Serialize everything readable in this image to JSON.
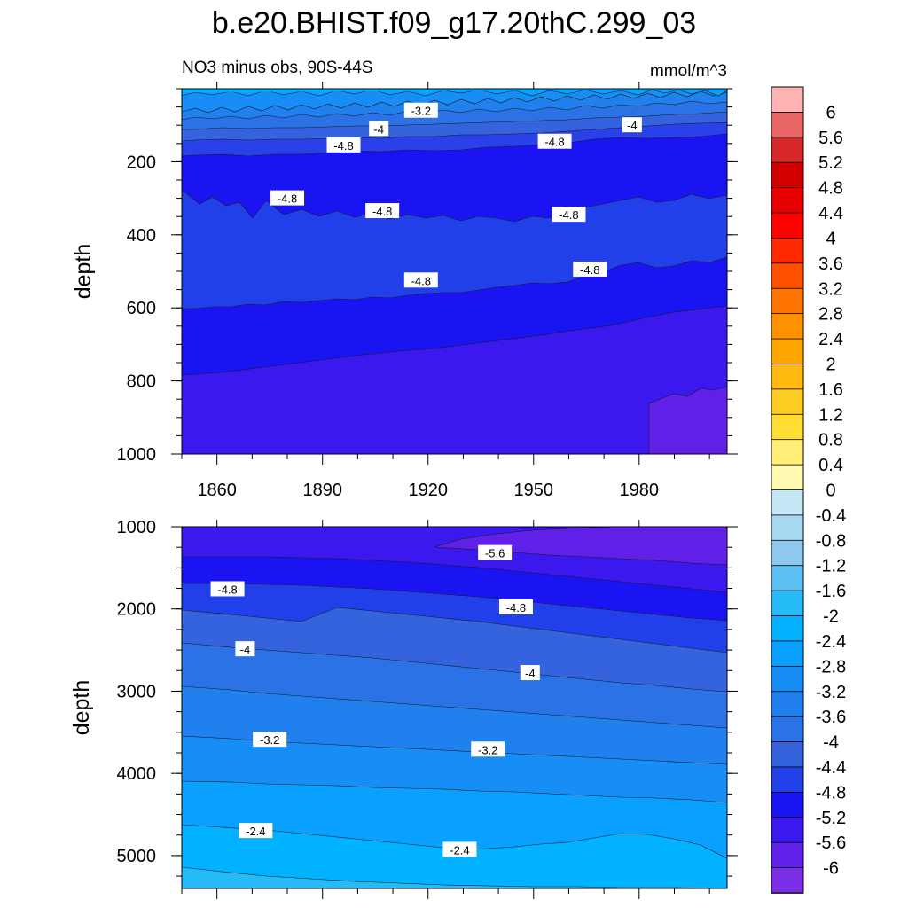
{
  "chart_data": [
    {
      "type": "heatmap",
      "title": "b.e20.BHIST.f09_g17.20thC.299_03",
      "left_subtitle": "NO3 minus obs, 90S-44S",
      "right_subtitle": "mmol/m^3",
      "ylabel": "depth",
      "xlim": [
        1850,
        2005
      ],
      "ylim": [
        0,
        1000
      ],
      "x_ticks": [
        "1860",
        "1890",
        "1920",
        "1950",
        "1980"
      ],
      "y_ticks": [
        "200",
        "400",
        "600",
        "800",
        "1000"
      ],
      "contour_labels": [
        {
          "text": "-3.2",
          "x": 1918,
          "y": 60
        },
        {
          "text": "-4",
          "x": 1906,
          "y": 110
        },
        {
          "text": "-4",
          "x": 1978,
          "y": 100
        },
        {
          "text": "-4.8",
          "x": 1896,
          "y": 155
        },
        {
          "text": "-4.8",
          "x": 1956,
          "y": 145
        },
        {
          "text": "-4.8",
          "x": 1880,
          "y": 300
        },
        {
          "text": "-4.8",
          "x": 1907,
          "y": 335
        },
        {
          "text": "-4.8",
          "x": 1960,
          "y": 345
        },
        {
          "text": "-4.8",
          "x": 1918,
          "y": 525
        },
        {
          "text": "-4.8",
          "x": 1966,
          "y": 495
        }
      ]
    },
    {
      "type": "heatmap",
      "ylabel": "depth",
      "xlim": [
        1850,
        2005
      ],
      "ylim": [
        1000,
        5400
      ],
      "y_ticks": [
        "1000",
        "2000",
        "3000",
        "4000",
        "5000"
      ],
      "contour_labels": [
        {
          "text": "-5.6",
          "x": 1939,
          "y": 1320
        },
        {
          "text": "-4.8",
          "x": 1863,
          "y": 1760
        },
        {
          "text": "-4.8",
          "x": 1945,
          "y": 1980
        },
        {
          "text": "-4",
          "x": 1868,
          "y": 2490
        },
        {
          "text": "-4",
          "x": 1949,
          "y": 2780
        },
        {
          "text": "-3.2",
          "x": 1875,
          "y": 3590
        },
        {
          "text": "-3.2",
          "x": 1937,
          "y": 3710
        },
        {
          "text": "-2.4",
          "x": 1871,
          "y": 4700
        },
        {
          "text": "-2.4",
          "x": 1929,
          "y": 4930
        }
      ]
    }
  ],
  "colorbar": {
    "labels": [
      "6",
      "5.6",
      "5.2",
      "4.8",
      "4.4",
      "4",
      "3.6",
      "3.2",
      "2.8",
      "2.4",
      "2",
      "1.6",
      "1.2",
      "0.8",
      "0.4",
      "0",
      "-0.4",
      "-0.8",
      "-1.2",
      "-1.6",
      "-2",
      "-2.4",
      "-2.8",
      "-3.2",
      "-3.6",
      "-4",
      "-4.4",
      "-4.8",
      "-5.2",
      "-5.6",
      "-6"
    ],
    "colors": [
      "#ffb3b3",
      "#ea6666",
      "#d62828",
      "#d40000",
      "#e80000",
      "#ff0000",
      "#ff2a00",
      "#ff5000",
      "#ff7300",
      "#ff9200",
      "#ffa500",
      "#ffb90f",
      "#ffcc22",
      "#ffdd33",
      "#ffee77",
      "#fff8b0",
      "#c4e6f5",
      "#a8d8f0",
      "#8ec8ee",
      "#5cc0f2",
      "#25bbf7",
      "#00b2ff",
      "#0aa0ff",
      "#178ef5",
      "#2080ee",
      "#2a72e6",
      "#3562dd",
      "#2240ea",
      "#1a14f2",
      "#3a18ee",
      "#6020e8",
      "#7a2ee6"
    ]
  }
}
